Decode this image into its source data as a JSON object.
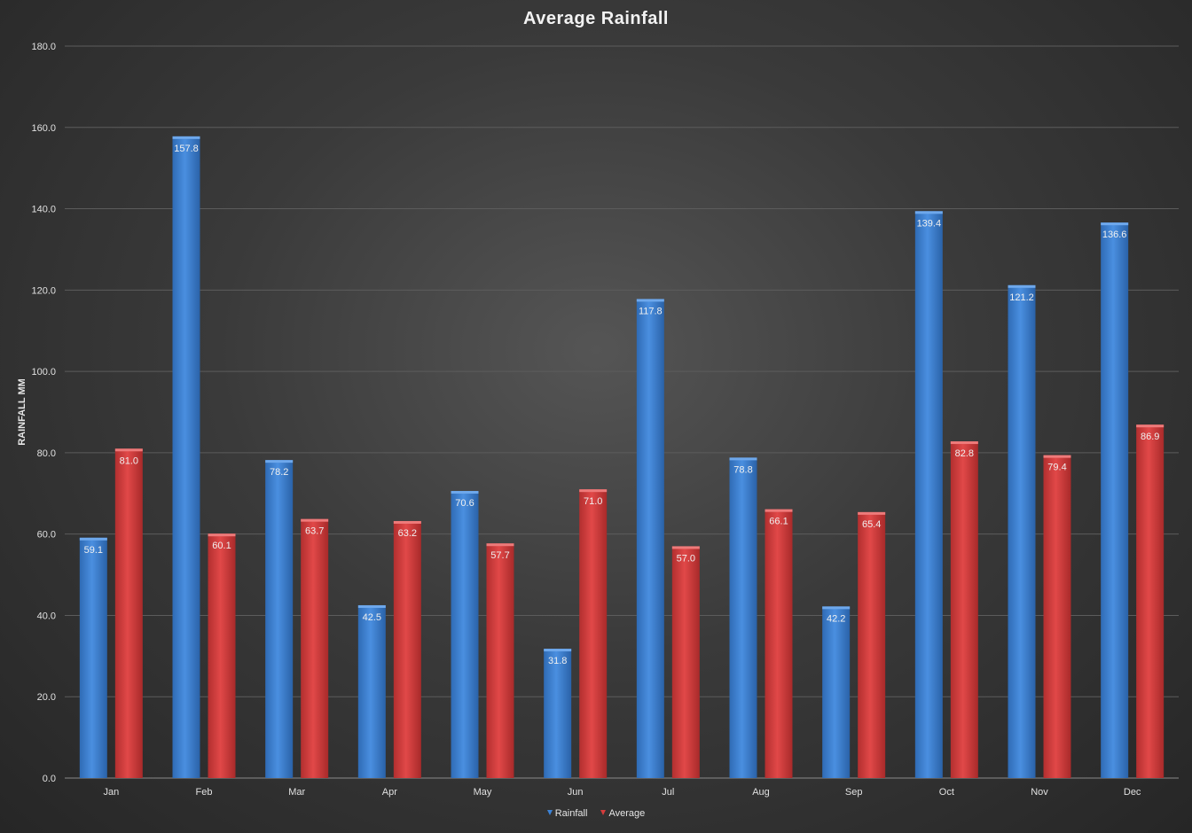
{
  "chart_data": {
    "type": "bar",
    "title": "Average Rainfall",
    "xlabel": "",
    "ylabel": "RAINFALL MM",
    "categories": [
      "Jan",
      "Feb",
      "Mar",
      "Apr",
      "May",
      "Jun",
      "Jul",
      "Aug",
      "Sep",
      "Oct",
      "Nov",
      "Dec"
    ],
    "series": [
      {
        "name": "Rainfall",
        "color": "#3c82d6",
        "values": [
          59.1,
          157.8,
          78.2,
          42.5,
          70.6,
          31.8,
          117.8,
          78.8,
          42.2,
          139.4,
          121.2,
          136.6
        ]
      },
      {
        "name": "Average",
        "color": "#d63c3c",
        "values": [
          81.0,
          60.1,
          63.7,
          63.2,
          57.7,
          71.0,
          57.0,
          66.1,
          65.4,
          82.8,
          79.4,
          86.9
        ]
      }
    ],
    "ylim": [
      0,
      180
    ],
    "yticks": [
      "0.0",
      "20.0",
      "40.0",
      "60.0",
      "80.0",
      "100.0",
      "120.0",
      "140.0",
      "160.0",
      "180.0"
    ],
    "grid": true,
    "legend_position": "bottom",
    "data_labels": true
  }
}
